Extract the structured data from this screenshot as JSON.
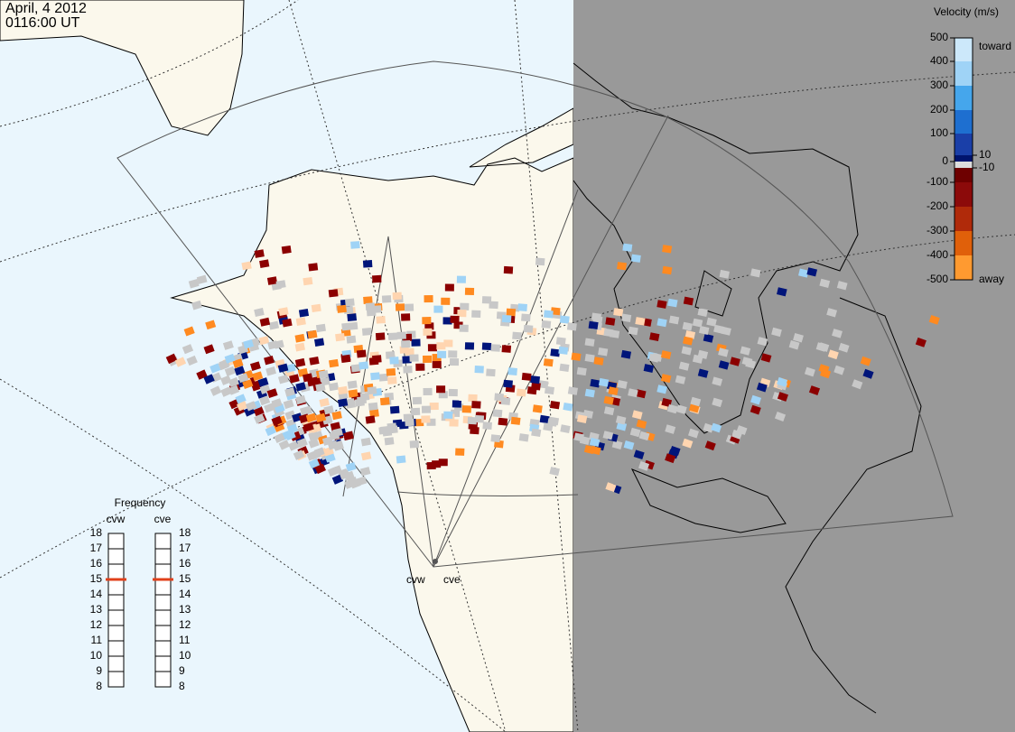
{
  "header": {
    "date": "April, 4 2012",
    "time": "0116:00 UT"
  },
  "legend": {
    "title": "Velocity (m/s)",
    "ticks": [
      500,
      400,
      300,
      200,
      100,
      10,
      0,
      -10,
      -100,
      -200,
      -300,
      -400,
      -500
    ],
    "toward": "toward",
    "away": "away"
  },
  "frequency": {
    "title": "Frequency",
    "ticks": [
      8,
      9,
      10,
      11,
      12,
      13,
      14,
      15,
      16,
      17,
      18
    ],
    "radars": [
      {
        "name": "cvw",
        "value": 15
      },
      {
        "name": "cve",
        "value": 15
      }
    ]
  },
  "sites": [
    "cvw",
    "cve"
  ]
}
